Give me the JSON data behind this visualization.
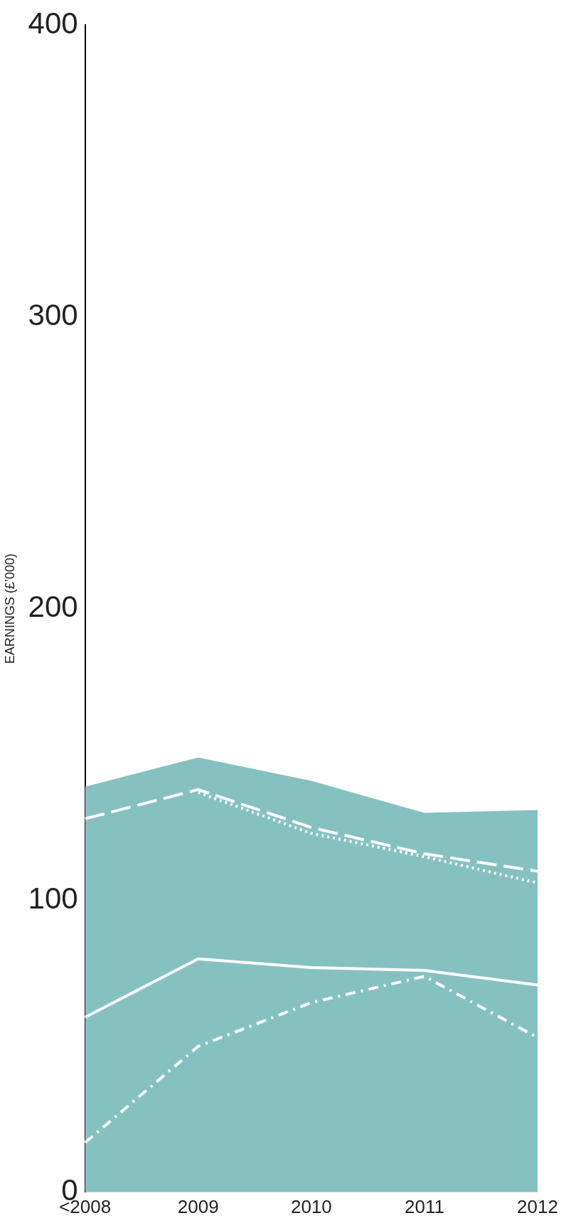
{
  "chart_data": {
    "type": "line",
    "ylabel": "EARNINGS (£’000)",
    "categories": [
      "<2008",
      "2009",
      "2010",
      "2011",
      "2012"
    ],
    "ylim": [
      0,
      400
    ],
    "yticks": [
      0,
      100,
      200,
      300,
      400
    ],
    "grid": false,
    "legend": false,
    "marker": "none",
    "series": [
      {
        "type": "area",
        "color": "#86c1c1",
        "values": [
          139,
          149,
          141,
          130,
          131
        ]
      },
      {
        "color": "#ffffff",
        "line_style": "dashed",
        "values": [
          128,
          138,
          125,
          116,
          110
        ]
      },
      {
        "color": "#ffffff",
        "line_style": "dotted",
        "values": [
          null,
          137,
          123,
          115,
          106
        ]
      },
      {
        "color": "#ffffff",
        "line_style": "solid",
        "values": [
          60,
          80,
          77,
          76,
          71
        ]
      },
      {
        "color": "#ffffff",
        "line_style": "dashdot",
        "values": [
          17,
          50,
          65,
          74,
          53
        ]
      }
    ]
  }
}
